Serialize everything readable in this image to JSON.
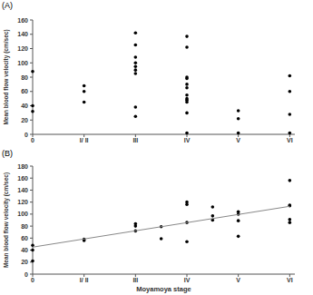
{
  "chart_data": [
    {
      "type": "scatter",
      "title": "(A)",
      "y_label": "Mean blood flow velocity (cm/sec)",
      "xlim": [
        0,
        5.1
      ],
      "ylim": [
        0,
        160
      ],
      "xticks": [
        {
          "value": 0,
          "label": "0"
        },
        {
          "value": 1,
          "label": "I/ II"
        },
        {
          "value": 2,
          "label": "III"
        },
        {
          "value": 3,
          "label": "IV"
        },
        {
          "value": 4,
          "label": "V"
        },
        {
          "value": 5,
          "label": "VI"
        }
      ],
      "yticks": [
        0,
        20,
        40,
        60,
        80,
        100,
        120,
        140,
        160
      ],
      "series": [
        {
          "type": "scatter",
          "marker": "circle",
          "color": "#000000",
          "x": [
            0,
            0,
            0,
            1,
            1,
            1,
            2,
            2,
            2,
            2,
            2,
            2,
            2,
            2,
            2,
            3,
            3,
            3,
            3,
            3,
            3,
            3,
            3,
            3,
            3,
            3,
            3,
            4,
            4,
            4,
            5,
            5,
            5,
            5
          ],
          "values": [
            88,
            40,
            32,
            68,
            60,
            45,
            142,
            125,
            108,
            100,
            95,
            90,
            85,
            38,
            25,
            137,
            122,
            80,
            78,
            70,
            65,
            55,
            50,
            48,
            45,
            30,
            2,
            33,
            22,
            2,
            82,
            60,
            28,
            2
          ]
        }
      ]
    },
    {
      "type": "scatter",
      "title": "(B)",
      "y_label": "Mean blood flow velocity (cm/sec)",
      "x_label": "Moyamoya stage",
      "xlim": [
        0,
        5.1
      ],
      "ylim": [
        0,
        180
      ],
      "xticks": [
        {
          "value": 0,
          "label": "0"
        },
        {
          "value": 1,
          "label": "I/ II"
        },
        {
          "value": 2,
          "label": "III"
        },
        {
          "value": 3,
          "label": "IV"
        },
        {
          "value": 4,
          "label": "V"
        },
        {
          "value": 5,
          "label": "VI"
        }
      ],
      "yticks": [
        0,
        20,
        40,
        60,
        80,
        100,
        120,
        140,
        160,
        180
      ],
      "series": [
        {
          "type": "scatter",
          "marker": "circle",
          "color": "#000000",
          "x": [
            0,
            0,
            0,
            1,
            1,
            2,
            2,
            2,
            2.5,
            2.5,
            3,
            3,
            3,
            3,
            3.5,
            3.5,
            3.5,
            4,
            4,
            4,
            4,
            5,
            5,
            5,
            5,
            5
          ],
          "values": [
            48,
            40,
            22,
            58,
            56,
            84,
            80,
            72,
            79,
            59,
            120,
            116,
            86,
            54,
            112,
            97,
            90,
            104,
            100,
            89,
            63,
            156,
            115,
            114,
            91,
            86
          ]
        },
        {
          "type": "line",
          "line_style": "solid",
          "color": "#888888",
          "x": [
            0,
            5
          ],
          "values": [
            45,
            113
          ]
        }
      ]
    }
  ]
}
